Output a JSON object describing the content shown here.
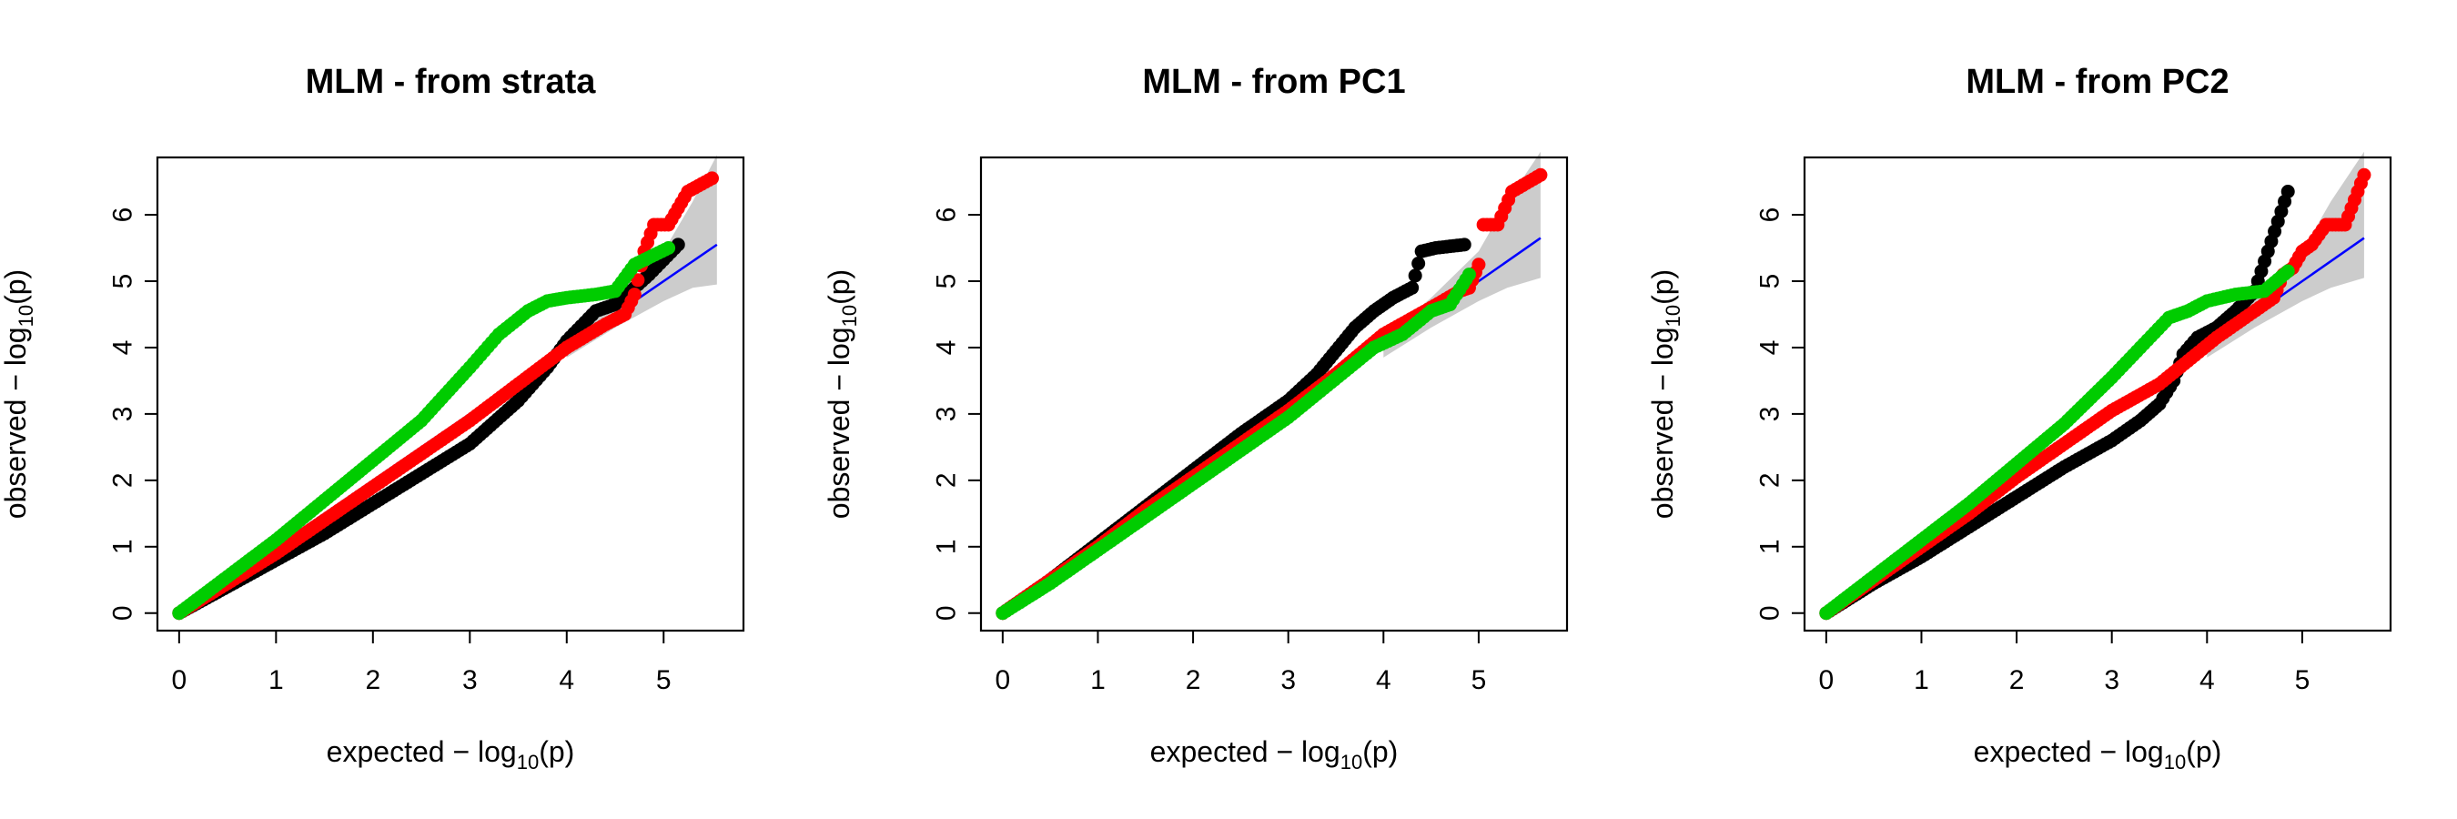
{
  "colors": {
    "line": "#0000ff",
    "band": "#cccccc",
    "series": [
      "#000000",
      "#ff0000",
      "#00cc00"
    ]
  },
  "chart_data": [
    {
      "type": "scatter",
      "title": "MLM - from strata",
      "xlabel": {
        "pre": "expected  − log",
        "sub": "10",
        "post": "(p)"
      },
      "ylabel": {
        "pre": "observed  − log",
        "sub": "10",
        "post": "(p)"
      },
      "xlim": [
        0,
        5.6
      ],
      "ylim": [
        0,
        6.6
      ],
      "xticks": [
        0,
        1,
        2,
        3,
        4,
        5
      ],
      "yticks": [
        0,
        1,
        2,
        3,
        4,
        5,
        6
      ],
      "reference_line": {
        "x": [
          0,
          5.55
        ],
        "y": [
          0,
          5.55
        ]
      },
      "confidence_band": {
        "x": [
          4.0,
          4.5,
          5.0,
          5.3,
          5.55
        ],
        "lower": [
          3.85,
          4.3,
          4.7,
          4.9,
          4.95
        ],
        "upper": [
          4.15,
          4.75,
          5.45,
          6.2,
          6.9
        ]
      },
      "series": [
        {
          "color": "#000000",
          "x": [
            0,
            0.5,
            1,
            1.5,
            2,
            2.5,
            3,
            3.5,
            3.8,
            4.0,
            4.3,
            4.5,
            4.7,
            4.85,
            5.15
          ],
          "y": [
            0,
            0.4,
            0.8,
            1.2,
            1.65,
            2.1,
            2.55,
            3.2,
            3.7,
            4.1,
            4.55,
            4.65,
            4.9,
            5.1,
            5.55
          ]
        },
        {
          "color": "#ff0000",
          "x": [
            0,
            0.5,
            1,
            1.5,
            2,
            2.5,
            3,
            3.5,
            4.0,
            4.4,
            4.6,
            4.7,
            4.8,
            4.9,
            5.05,
            5.25,
            5.5
          ],
          "y": [
            0,
            0.45,
            0.9,
            1.4,
            1.9,
            2.4,
            2.9,
            3.45,
            4.0,
            4.35,
            4.5,
            4.8,
            5.45,
            5.85,
            5.85,
            6.35,
            6.55
          ]
        },
        {
          "color": "#00cc00",
          "x": [
            0,
            0.5,
            1,
            1.5,
            2,
            2.5,
            3,
            3.3,
            3.6,
            3.8,
            4.0,
            4.3,
            4.5,
            4.7,
            5.05
          ],
          "y": [
            0,
            0.55,
            1.1,
            1.7,
            2.3,
            2.9,
            3.7,
            4.2,
            4.55,
            4.7,
            4.75,
            4.8,
            4.85,
            5.25,
            5.5
          ]
        }
      ]
    },
    {
      "type": "scatter",
      "title": "MLM - from PC1",
      "xlabel": {
        "pre": "expected  − log",
        "sub": "10",
        "post": "(p)"
      },
      "ylabel": {
        "pre": "observed  − log",
        "sub": "10",
        "post": "(p)"
      },
      "xlim": [
        0,
        5.7
      ],
      "ylim": [
        0,
        6.6
      ],
      "xticks": [
        0,
        1,
        2,
        3,
        4,
        5
      ],
      "yticks": [
        0,
        1,
        2,
        3,
        4,
        5,
        6
      ],
      "reference_line": {
        "x": [
          0,
          5.65
        ],
        "y": [
          0,
          5.65
        ]
      },
      "confidence_band": {
        "x": [
          4.0,
          4.5,
          5.0,
          5.3,
          5.65
        ],
        "lower": [
          3.85,
          4.3,
          4.7,
          4.9,
          5.05
        ],
        "upper": [
          4.15,
          4.75,
          5.45,
          6.2,
          6.95
        ]
      },
      "series": [
        {
          "color": "#000000",
          "x": [
            0,
            0.5,
            1,
            1.5,
            2,
            2.5,
            3,
            3.3,
            3.5,
            3.7,
            3.9,
            4.1,
            4.3,
            4.4,
            4.55,
            4.85
          ],
          "y": [
            0,
            0.5,
            1.05,
            1.6,
            2.15,
            2.7,
            3.2,
            3.6,
            3.95,
            4.3,
            4.55,
            4.75,
            4.9,
            5.45,
            5.5,
            5.55
          ]
        },
        {
          "color": "#ff0000",
          "x": [
            0,
            0.5,
            1,
            1.5,
            2,
            2.5,
            3,
            3.5,
            4.0,
            4.5,
            4.8,
            4.9,
            5.0,
            5.05,
            5.2,
            5.35,
            5.65
          ],
          "y": [
            0,
            0.5,
            1.0,
            1.55,
            2.05,
            2.55,
            3.05,
            3.6,
            4.2,
            4.6,
            4.85,
            4.9,
            5.25,
            5.85,
            5.85,
            6.35,
            6.6
          ]
        },
        {
          "color": "#00cc00",
          "x": [
            0,
            0.5,
            1,
            1.5,
            2,
            2.5,
            3,
            3.3,
            3.6,
            3.9,
            4.2,
            4.5,
            4.7,
            4.9
          ],
          "y": [
            0,
            0.45,
            0.95,
            1.45,
            1.95,
            2.45,
            2.95,
            3.3,
            3.65,
            4.0,
            4.2,
            4.55,
            4.65,
            5.1
          ]
        }
      ]
    },
    {
      "type": "scatter",
      "title": "MLM - from PC2",
      "xlabel": {
        "pre": "expected  − log",
        "sub": "10",
        "post": "(p)"
      },
      "ylabel": {
        "pre": "observed  − log",
        "sub": "10",
        "post": "(p)"
      },
      "xlim": [
        0,
        5.7
      ],
      "ylim": [
        0,
        6.6
      ],
      "xticks": [
        0,
        1,
        2,
        3,
        4,
        5
      ],
      "yticks": [
        0,
        1,
        2,
        3,
        4,
        5,
        6
      ],
      "reference_line": {
        "x": [
          0,
          5.65
        ],
        "y": [
          0,
          5.65
        ]
      },
      "confidence_band": {
        "x": [
          4.0,
          4.5,
          5.0,
          5.3,
          5.65
        ],
        "lower": [
          3.85,
          4.3,
          4.7,
          4.9,
          5.05
        ],
        "upper": [
          4.15,
          4.75,
          5.45,
          6.2,
          6.95
        ]
      },
      "series": [
        {
          "color": "#000000",
          "x": [
            0,
            0.5,
            1,
            1.5,
            2,
            2.5,
            3,
            3.3,
            3.5,
            3.65,
            3.75,
            3.9,
            4.1,
            4.3,
            4.5,
            4.85
          ],
          "y": [
            0,
            0.45,
            0.85,
            1.3,
            1.75,
            2.2,
            2.6,
            2.9,
            3.15,
            3.5,
            3.9,
            4.15,
            4.3,
            4.55,
            4.85,
            6.35
          ]
        },
        {
          "color": "#ff0000",
          "x": [
            0,
            0.5,
            1,
            1.5,
            2,
            2.5,
            3,
            3.5,
            3.8,
            4.1,
            4.4,
            4.7,
            4.8,
            4.9,
            5.0,
            5.1,
            5.25,
            5.45,
            5.65
          ],
          "y": [
            0,
            0.5,
            1.0,
            1.5,
            2.05,
            2.55,
            3.05,
            3.45,
            3.8,
            4.15,
            4.45,
            4.75,
            5.1,
            5.2,
            5.45,
            5.55,
            5.85,
            5.85,
            6.6
          ]
        },
        {
          "color": "#00cc00",
          "x": [
            0,
            0.5,
            1,
            1.5,
            2,
            2.5,
            3,
            3.3,
            3.6,
            3.8,
            4.0,
            4.3,
            4.6,
            4.85
          ],
          "y": [
            0,
            0.55,
            1.1,
            1.65,
            2.25,
            2.85,
            3.55,
            4.0,
            4.45,
            4.55,
            4.7,
            4.8,
            4.85,
            5.15
          ]
        }
      ]
    }
  ]
}
